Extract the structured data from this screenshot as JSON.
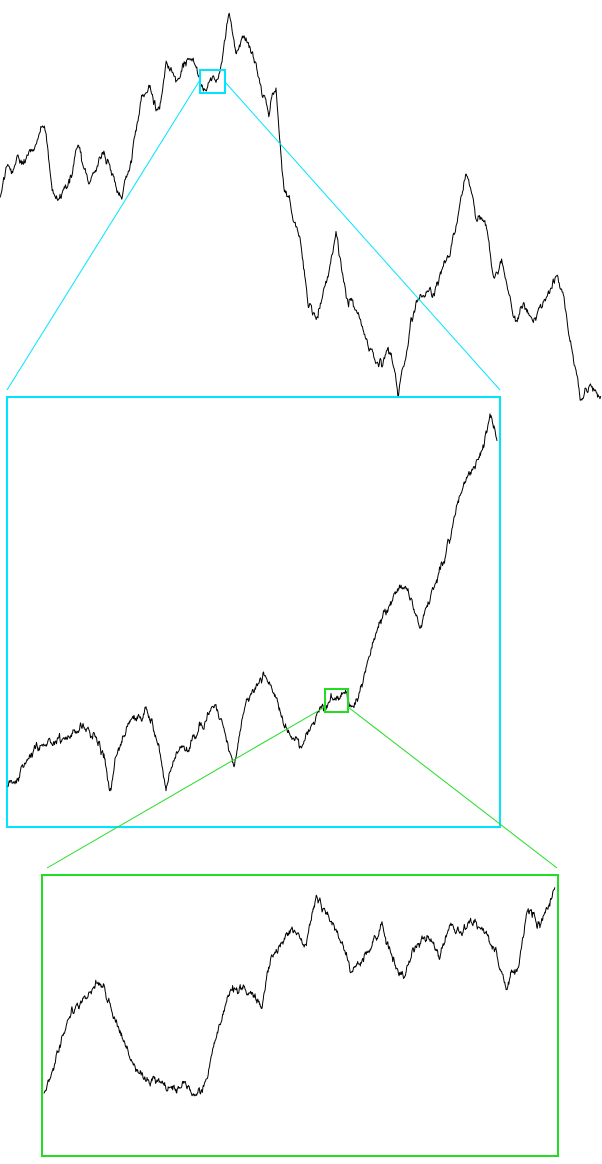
{
  "figure": {
    "kind": "self-similar random walk with nested zoom insets",
    "levels": 3,
    "zoom_colors": {
      "level_1": "#00e5ff",
      "level_2": "#22dd22"
    },
    "trace_color": "#000000",
    "background": "#ffffff"
  }
}
